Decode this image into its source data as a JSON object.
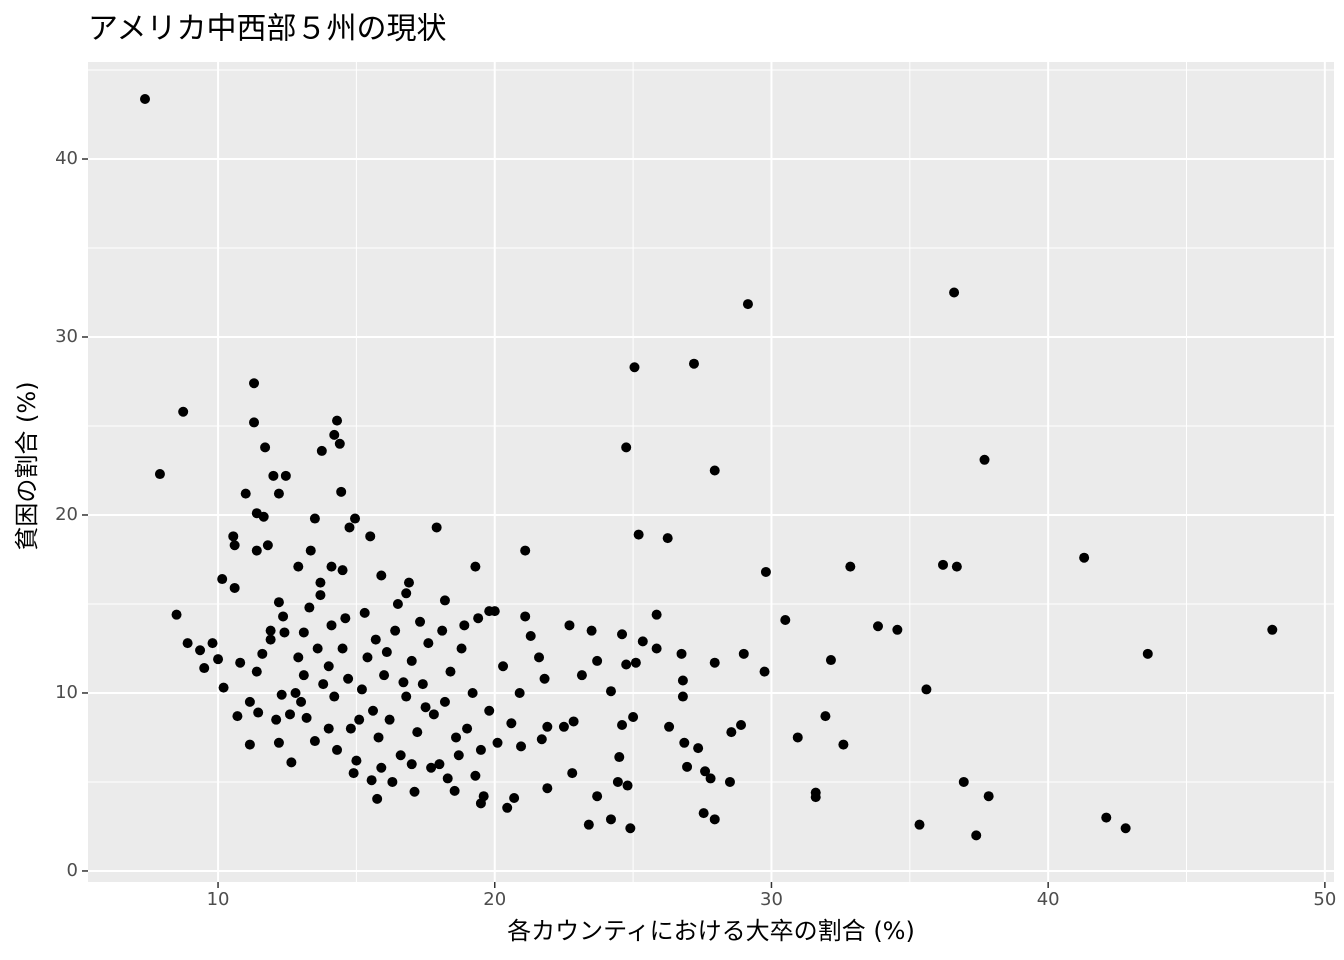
{
  "chart_data": {
    "type": "scatter",
    "title": "アメリカ中西部５州の現状",
    "x_label": "各カウンティにおける大卒の割合 (%)",
    "y_label": "貧困の割合 (%)",
    "xlim": [
      5.3,
      50.33
    ],
    "ylim": [
      -0.62,
      45.45
    ],
    "xticks": [
      10,
      20,
      30,
      40,
      50
    ],
    "yticks": [
      0,
      10,
      20,
      30,
      40
    ],
    "xminor": [
      15,
      25,
      35,
      45
    ],
    "yminor": [
      5,
      15,
      25,
      35,
      45
    ],
    "grid": true,
    "series": [
      {
        "color": "#000000",
        "x": [
          7.36,
          7.9,
          8.74,
          8.5,
          8.9,
          9.35,
          9.5,
          9.8,
          10.0,
          10.15,
          10.2,
          10.6,
          10.55,
          10.6,
          10.7,
          10.8,
          11.0,
          11.15,
          11.15,
          11.3,
          11.3,
          11.4,
          11.4,
          11.4,
          11.45,
          11.7,
          11.65,
          11.8,
          11.6,
          12.0,
          12.2,
          12.45,
          12.2,
          12.35,
          11.9,
          11.9,
          12.1,
          12.2,
          12.3,
          12.4,
          12.65,
          12.9,
          13.1,
          13.35,
          13.5,
          13.75,
          13.7,
          14.3,
          14.2,
          14.4,
          14.45,
          14.75,
          14.95,
          14.5,
          14.1,
          15.5,
          15.9,
          17.9,
          16.9,
          16.8,
          18.2,
          19.3,
          21.1,
          19.8,
          20.0,
          21.1,
          22.7,
          15.75,
          15.55,
          17.1,
          18.55,
          19.5,
          20.45,
          20.7,
          19.3,
          21.9,
          23.4,
          23.7,
          24.2,
          24.9,
          24.45,
          24.8,
          24.5,
          22.8,
          24.75,
          25.05,
          25.2,
          27.2,
          27.95,
          29.15,
          26.25,
          25.85,
          25.35,
          25.85,
          25.1,
          24.75,
          24.6,
          24.2,
          23.7,
          23.5,
          23.15,
          25.0,
          24.6,
          22.85,
          22.5,
          21.9,
          21.7,
          20.95,
          26.75,
          26.8,
          26.8,
          26.3,
          26.85,
          27.35,
          26.95,
          27.6,
          27.8,
          27.55,
          27.95,
          27.95,
          28.55,
          28.9,
          29.0,
          28.5,
          29.75,
          29.8,
          30.5,
          30.95,
          31.6,
          31.6,
          31.95,
          32.15,
          32.6,
          32.85,
          33.85,
          34.55,
          35.6,
          35.35,
          36.2,
          36.7,
          36.6,
          36.95,
          37.4,
          37.7,
          37.85,
          41.3,
          42.1,
          42.8,
          43.6,
          48.1,
          13.0,
          13.2,
          13.5,
          13.8,
          14.0,
          14.2,
          14.5,
          14.8,
          15.0,
          15.2,
          15.4,
          15.6,
          15.8,
          16.0,
          16.2,
          16.4,
          16.6,
          16.8,
          17.0,
          17.2,
          17.4,
          17.6,
          17.8,
          18.0,
          18.2,
          18.4,
          18.6,
          18.8,
          19.0,
          19.2,
          19.5,
          19.8,
          20.1,
          20.3,
          20.6,
          20.9,
          21.3,
          21.6,
          21.8,
          13.3,
          13.7,
          14.1,
          14.6,
          15.3,
          15.7,
          16.5,
          17.3,
          18.1,
          18.9,
          19.4,
          13.1,
          12.8,
          12.6,
          14.3,
          14.9,
          15.9,
          16.3,
          17.0,
          17.7,
          18.3,
          18.7,
          19.6,
          16.1,
          17.5,
          15.1,
          14.0,
          13.6,
          12.9,
          14.7,
          16.7
        ],
        "values": [
          43.37,
          22.3,
          25.8,
          14.4,
          12.8,
          12.4,
          11.4,
          12.8,
          11.9,
          16.4,
          10.3,
          15.9,
          18.8,
          18.3,
          8.7,
          11.7,
          21.2,
          9.5,
          7.1,
          27.4,
          25.2,
          20.1,
          18.0,
          11.2,
          8.9,
          23.8,
          19.9,
          18.3,
          12.2,
          22.2,
          21.2,
          22.2,
          15.1,
          14.3,
          13.5,
          13.0,
          8.5,
          7.2,
          9.9,
          13.4,
          6.1,
          17.1,
          13.4,
          18.0,
          19.8,
          23.6,
          16.2,
          25.3,
          24.5,
          24.0,
          21.3,
          19.3,
          19.8,
          16.9,
          17.1,
          18.8,
          16.6,
          19.3,
          16.2,
          15.6,
          15.2,
          17.1,
          18.0,
          14.6,
          14.6,
          14.3,
          13.8,
          4.05,
          5.1,
          4.45,
          4.5,
          3.8,
          3.55,
          4.1,
          5.35,
          4.65,
          2.6,
          4.2,
          2.9,
          2.4,
          5.0,
          4.8,
          6.4,
          5.5,
          23.8,
          28.3,
          18.9,
          28.5,
          22.5,
          31.85,
          18.7,
          14.4,
          12.9,
          12.5,
          11.7,
          11.6,
          13.3,
          10.1,
          11.8,
          13.5,
          11.0,
          8.65,
          8.2,
          8.4,
          8.1,
          8.1,
          7.4,
          7.0,
          12.2,
          10.7,
          9.8,
          8.1,
          7.2,
          6.9,
          5.85,
          5.6,
          5.2,
          3.25,
          2.9,
          11.7,
          7.8,
          8.2,
          12.2,
          5.0,
          11.2,
          16.8,
          14.1,
          7.5,
          4.4,
          4.15,
          8.7,
          11.85,
          7.1,
          17.1,
          13.75,
          13.55,
          10.2,
          2.6,
          17.2,
          17.1,
          32.5,
          5.0,
          2.0,
          23.1,
          4.2,
          17.6,
          3.0,
          2.4,
          12.2,
          13.55,
          9.5,
          8.6,
          7.3,
          10.5,
          11.5,
          9.8,
          12.5,
          8.0,
          6.2,
          10.2,
          12.0,
          9.0,
          7.5,
          11.0,
          8.5,
          13.5,
          6.5,
          9.8,
          11.8,
          7.8,
          10.5,
          12.8,
          8.8,
          6.0,
          9.5,
          11.2,
          7.5,
          12.5,
          8.0,
          10.0,
          6.8,
          9.0,
          7.2,
          11.5,
          8.3,
          10.0,
          13.2,
          12.0,
          10.8,
          14.8,
          15.5,
          13.8,
          14.2,
          14.5,
          13.0,
          15.0,
          14.0,
          13.5,
          13.8,
          14.2,
          11.0,
          10.0,
          8.8,
          6.8,
          5.5,
          5.8,
          5.0,
          6.0,
          5.8,
          5.2,
          6.5,
          4.2,
          12.3,
          9.2,
          8.5,
          8.0,
          12.5,
          12.0,
          10.8,
          10.6
        ]
      }
    ]
  }
}
